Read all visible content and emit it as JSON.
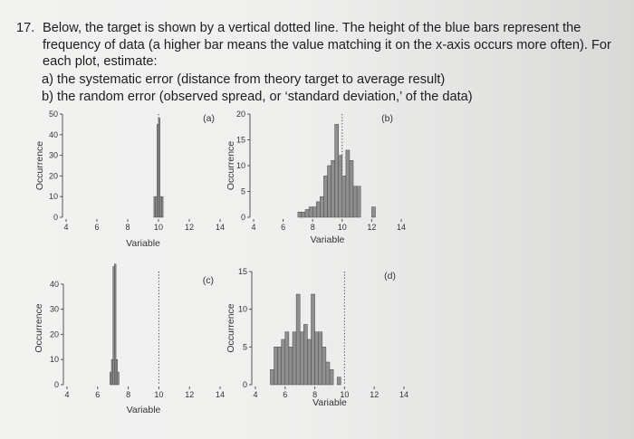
{
  "question": {
    "number": "17.",
    "lines": [
      "Below, the target is shown by a vertical dotted line. The height of the blue bars represent the",
      "frequency of data (a higher bar means the value matching it on the x-axis occurs more often). For",
      "each plot, estimate:"
    ],
    "items": [
      "a)  the systematic error (distance from theory target to average result)",
      "b)  the random error (observed spread, or ‘standard deviation,’ of the data)"
    ]
  },
  "colors": {
    "bar": "#8f8f8f",
    "bar_edge": "#4a4a4a",
    "target": "#444444",
    "axis": "#555555"
  },
  "chart_data": [
    {
      "type": "bar",
      "panel_label": "(a)",
      "xlabel": "Variable",
      "ylabel": "Occurrence",
      "xlim": [
        4,
        14
      ],
      "ylim": [
        0,
        50
      ],
      "xticks": [
        4,
        6,
        8,
        10,
        12,
        14
      ],
      "yticks": [
        0,
        10,
        20,
        30,
        40,
        50
      ],
      "target": 10,
      "bin_width": 0.1,
      "bars": [
        [
          9.7,
          10
        ],
        [
          9.8,
          10
        ],
        [
          9.9,
          45
        ],
        [
          10.0,
          48
        ],
        [
          10.1,
          10
        ],
        [
          10.2,
          10
        ]
      ]
    },
    {
      "type": "bar",
      "panel_label": "(b)",
      "xlabel": "Variable",
      "ylabel": "Occurrence",
      "xlim": [
        4,
        14
      ],
      "ylim": [
        0,
        20
      ],
      "xticks": [
        4,
        6,
        8,
        10,
        12,
        14
      ],
      "yticks": [
        0,
        5,
        10,
        15,
        20
      ],
      "target": 10,
      "bin_width": 0.25,
      "bars": [
        [
          7.0,
          1
        ],
        [
          7.25,
          1
        ],
        [
          7.5,
          1.5
        ],
        [
          7.75,
          2
        ],
        [
          8.0,
          2
        ],
        [
          8.25,
          3
        ],
        [
          8.5,
          4
        ],
        [
          8.75,
          8
        ],
        [
          9.0,
          10
        ],
        [
          9.25,
          11
        ],
        [
          9.5,
          18
        ],
        [
          9.75,
          12
        ],
        [
          10.0,
          8
        ],
        [
          10.25,
          13
        ],
        [
          10.5,
          11
        ],
        [
          10.75,
          6
        ],
        [
          11.0,
          6
        ],
        [
          12.0,
          2
        ]
      ]
    },
    {
      "type": "bar",
      "panel_label": "(c)",
      "xlabel": "Variable",
      "ylabel": "Occurrence",
      "xlim": [
        4,
        14
      ],
      "ylim": [
        0,
        45
      ],
      "xticks": [
        4,
        6,
        8,
        10,
        12,
        14
      ],
      "yticks": [
        0,
        10,
        20,
        30,
        40
      ],
      "target": 10,
      "bin_width": 0.1,
      "bars": [
        [
          6.8,
          5
        ],
        [
          6.9,
          10
        ],
        [
          7.0,
          47
        ],
        [
          7.1,
          48
        ],
        [
          7.2,
          10
        ],
        [
          7.3,
          5
        ]
      ]
    },
    {
      "type": "bar",
      "panel_label": "(d)",
      "xlabel": "Variable",
      "ylabel": "Occurrence",
      "xlim": [
        4,
        14
      ],
      "ylim": [
        0,
        15
      ],
      "xticks": [
        4,
        6,
        8,
        10,
        12,
        14
      ],
      "yticks": [
        0,
        5,
        10,
        15
      ],
      "target": 10,
      "bin_width": 0.25,
      "bars": [
        [
          5.0,
          2
        ],
        [
          5.25,
          5
        ],
        [
          5.5,
          5
        ],
        [
          5.75,
          6
        ],
        [
          6.0,
          7
        ],
        [
          6.25,
          5
        ],
        [
          6.5,
          7
        ],
        [
          6.75,
          12
        ],
        [
          7.0,
          7
        ],
        [
          7.25,
          8
        ],
        [
          7.5,
          6
        ],
        [
          7.75,
          12
        ],
        [
          8.0,
          7
        ],
        [
          8.25,
          7
        ],
        [
          8.5,
          5
        ],
        [
          8.75,
          3
        ],
        [
          9.0,
          2
        ],
        [
          9.5,
          1
        ]
      ]
    }
  ]
}
